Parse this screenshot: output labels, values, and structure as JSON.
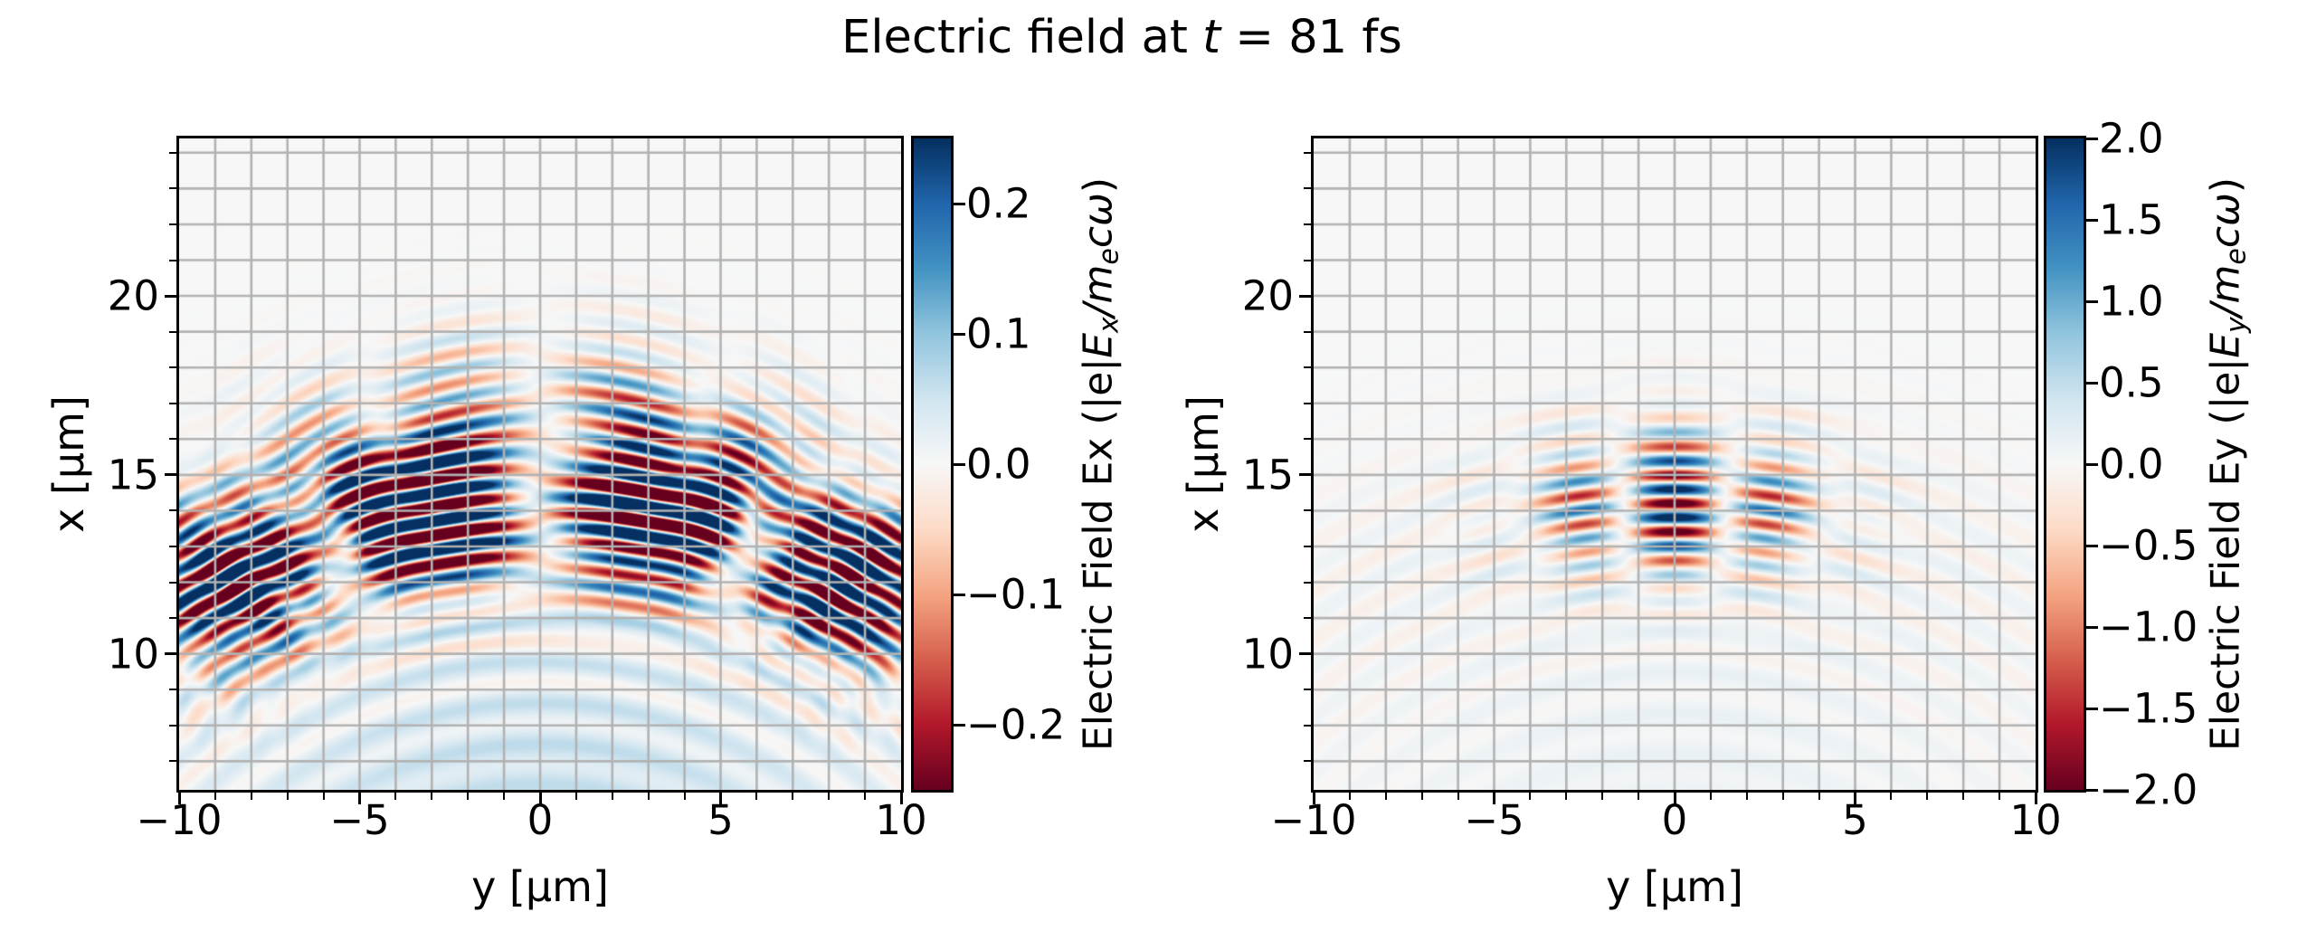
{
  "figure": {
    "title_pre": "Electric field at ",
    "title_t": "t",
    "title_post": " = 81 fs",
    "background": "#ffffff"
  },
  "colormap": {
    "name": "RdBu",
    "anchors": [
      "#67001f",
      "#b2182b",
      "#d6604d",
      "#f4a582",
      "#fddbc7",
      "#f7f7f7",
      "#d1e5f0",
      "#92c5de",
      "#4393c3",
      "#2166ac",
      "#053061"
    ]
  },
  "chart_data": [
    {
      "type": "heatmap",
      "name": "Ex",
      "xlabel": "y [μm]",
      "ylabel": "x [μm]",
      "x_range": [
        -10,
        10
      ],
      "y_range": [
        6.2,
        24.4
      ],
      "x_major_ticks": [
        {
          "v": -10,
          "label": "−10"
        },
        {
          "v": -5,
          "label": "−5"
        },
        {
          "v": 0,
          "label": "0"
        },
        {
          "v": 5,
          "label": "5"
        },
        {
          "v": 10,
          "label": "10"
        }
      ],
      "y_major_ticks": [
        {
          "v": 20,
          "label": "20"
        },
        {
          "v": 15,
          "label": "15"
        },
        {
          "v": 10,
          "label": "10"
        }
      ],
      "minor_tick_step": 1,
      "grid": {
        "step": 1,
        "color": "#b2b2b2"
      },
      "vmin": -0.25,
      "vmax": 0.25,
      "colorbar": {
        "ticks": [
          {
            "v": 0.2,
            "label": "0.2"
          },
          {
            "v": 0.1,
            "label": "0.1"
          },
          {
            "v": 0.0,
            "label": "0.0"
          },
          {
            "v": -0.1,
            "label": "−0.1"
          },
          {
            "v": -0.2,
            "label": "−0.2"
          }
        ],
        "label_text": "Electric Field Ex (|e|Ex/mecω)",
        "label_parts": [
          {
            "t": "Electric Field Ex (|e|"
          },
          {
            "t": "E",
            "it": true
          },
          {
            "t": "x",
            "it": true,
            "sub": true
          },
          {
            "t": "/",
            "it": true
          },
          {
            "t": "m",
            "it": true
          },
          {
            "t": "e",
            "it": true,
            "sub": true
          },
          {
            "t": "c",
            "it": true
          },
          {
            "t": "ω",
            "it": true
          },
          {
            "t": ")"
          }
        ]
      },
      "field": {
        "lambda": 0.8,
        "sources": [
          {
            "cy": -4,
            "R0": 18.2,
            "sigma_r": 2.0,
            "amp": 0.55,
            "ang": "sin",
            "ang_period": 0.105,
            "ang_cut": 0.7,
            "ang_pow": 6,
            "phase": 0.5
          },
          {
            "cy": 6,
            "R0": 10.2,
            "sigma_r": 2.4,
            "amp": 0.2,
            "ang": "sin",
            "ang_period": 0.12,
            "ang_cut": 1.1,
            "ang_pow": 4,
            "phase": 1.3
          }
        ],
        "rings": {
          "cy": -4,
          "R0": 18.2,
          "amp": 0.065,
          "lambda": 1.15,
          "sigma_in": 6.5,
          "sigma_out": 3.5,
          "sigma_theta": 0.95,
          "phase": 0.6
        },
        "haze": {
          "cy": -4,
          "amp": 0.05,
          "r0": 10.0,
          "sigma": 4.0,
          "sigma_theta": 1.1
        }
      }
    },
    {
      "type": "heatmap",
      "name": "Ey",
      "xlabel": "y [μm]",
      "ylabel": "x [μm]",
      "x_range": [
        -10,
        10
      ],
      "y_range": [
        6.2,
        24.4
      ],
      "x_major_ticks": [
        {
          "v": -10,
          "label": "−10"
        },
        {
          "v": -5,
          "label": "−5"
        },
        {
          "v": 0,
          "label": "0"
        },
        {
          "v": 5,
          "label": "5"
        },
        {
          "v": 10,
          "label": "10"
        }
      ],
      "y_major_ticks": [
        {
          "v": 20,
          "label": "20"
        },
        {
          "v": 15,
          "label": "15"
        },
        {
          "v": 10,
          "label": "10"
        }
      ],
      "minor_tick_step": 1,
      "grid": {
        "step": 1,
        "color": "#b2b2b2"
      },
      "vmin": -2.0,
      "vmax": 2.0,
      "colorbar": {
        "ticks": [
          {
            "v": 2.0,
            "label": "2.0"
          },
          {
            "v": 1.5,
            "label": "1.5"
          },
          {
            "v": 1.0,
            "label": "1.0"
          },
          {
            "v": 0.5,
            "label": "0.5"
          },
          {
            "v": 0.0,
            "label": "0.0"
          },
          {
            "v": -0.5,
            "label": "−0.5"
          },
          {
            "v": -1.0,
            "label": "−1.0"
          },
          {
            "v": -1.5,
            "label": "−1.5"
          },
          {
            "v": -2.0,
            "label": "−2.0"
          }
        ],
        "label_text": "Electric Field Ey (|e|Ey/mecω)",
        "label_parts": [
          {
            "t": "Electric Field Ey (|e|"
          },
          {
            "t": "E",
            "it": true
          },
          {
            "t": "y",
            "it": true,
            "sub": true
          },
          {
            "t": "/",
            "it": true
          },
          {
            "t": "m",
            "it": true
          },
          {
            "t": "e",
            "it": true,
            "sub": true
          },
          {
            "t": "c",
            "it": true
          },
          {
            "t": "ω",
            "it": true
          },
          {
            "t": ")"
          }
        ]
      },
      "field": {
        "lambda": 0.8,
        "sources": [
          {
            "cy": -4,
            "R0": 18.2,
            "sigma_r": 1.9,
            "amp": 2.6,
            "ang": "cos",
            "ang_period": 0.051,
            "ang_cut": 0.2,
            "ang_pow": 2,
            "phase": -1.5708
          }
        ],
        "rings": {
          "cy": -4,
          "R0": 18.2,
          "amp": 0.17,
          "lambda": 1.15,
          "sigma_in": 6.5,
          "sigma_out": 3.2,
          "sigma_theta": 0.85,
          "phase": 2.2
        },
        "haze": {
          "cy": -4,
          "amp": 0.1,
          "r0": 10.0,
          "sigma": 4.0,
          "sigma_theta": 0.8
        }
      }
    }
  ]
}
